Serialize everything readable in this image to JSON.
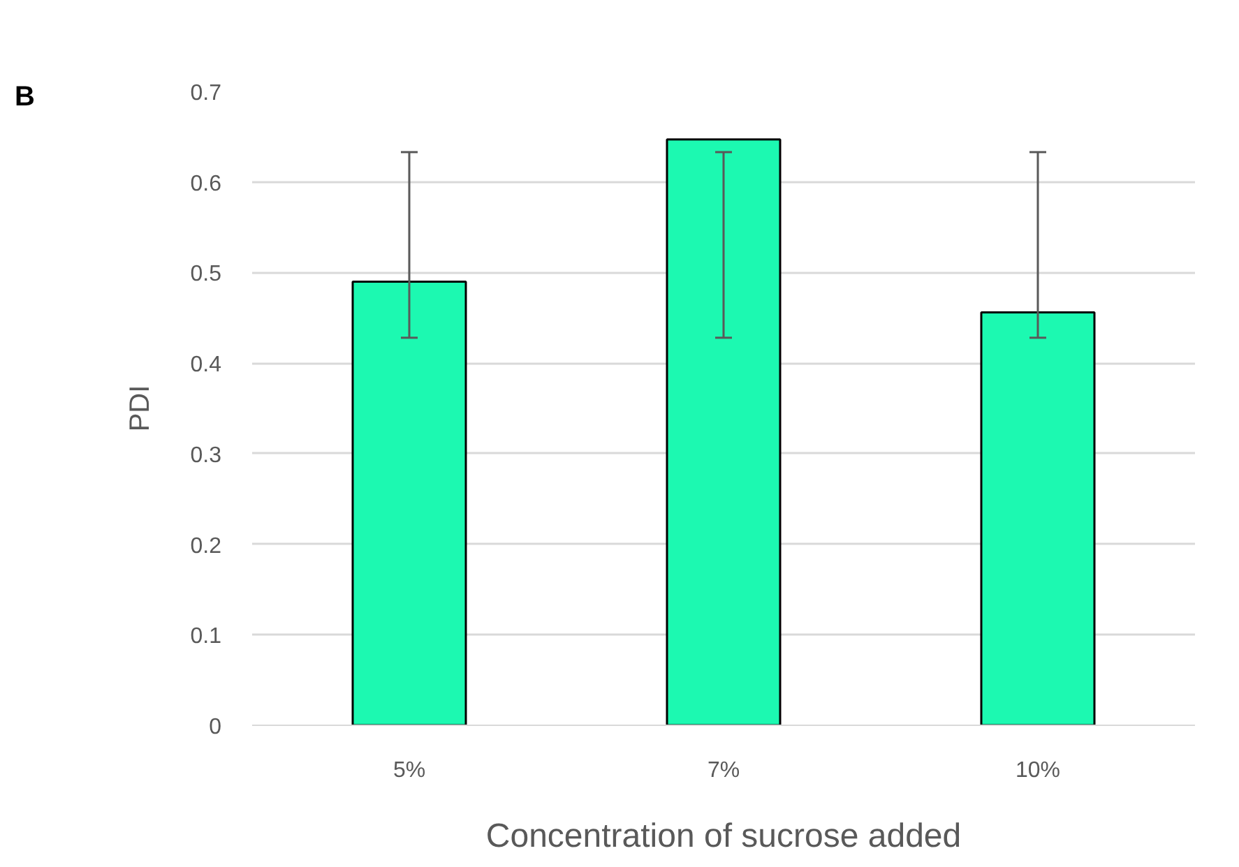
{
  "chart_data": {
    "type": "bar",
    "ylabel": "PDI",
    "xlabel": "Concentration of sucrose added",
    "annotations": [
      "B"
    ],
    "categories": [
      "5%",
      "7%",
      "10%"
    ],
    "values": [
      0.49,
      0.647,
      0.456
    ],
    "errors": [
      [
        0.428,
        0.633
      ],
      [
        0.428,
        0.633
      ],
      [
        0.428,
        0.633
      ]
    ],
    "color": "#1cf9b1",
    "ylim": [
      0,
      0.7
    ],
    "yticks": [
      0,
      0.1,
      0.2,
      0.3,
      0.4,
      0.5,
      0.6,
      0.7
    ],
    "grid": "y"
  }
}
